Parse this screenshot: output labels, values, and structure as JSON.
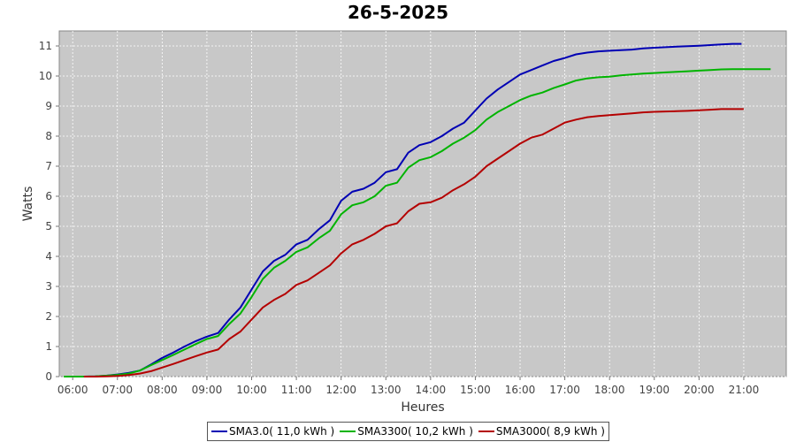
{
  "chart_data": {
    "type": "line",
    "title": "26-5-2025",
    "xlabel": "Heures",
    "ylabel": "Watts",
    "xlim": [
      5.7,
      21.95
    ],
    "ylim": [
      0,
      11.5
    ],
    "x_ticks": [
      {
        "value": 6,
        "label": "06:00"
      },
      {
        "value": 7,
        "label": "07:00"
      },
      {
        "value": 8,
        "label": "08:00"
      },
      {
        "value": 9,
        "label": "09:00"
      },
      {
        "value": 10,
        "label": "10:00"
      },
      {
        "value": 11,
        "label": "11:00"
      },
      {
        "value": 12,
        "label": "12:00"
      },
      {
        "value": 13,
        "label": "13:00"
      },
      {
        "value": 14,
        "label": "14:00"
      },
      {
        "value": 15,
        "label": "15:00"
      },
      {
        "value": 16,
        "label": "16:00"
      },
      {
        "value": 17,
        "label": "17:00"
      },
      {
        "value": 18,
        "label": "18:00"
      },
      {
        "value": 19,
        "label": "19:00"
      },
      {
        "value": 20,
        "label": "20:00"
      },
      {
        "value": 21,
        "label": "21:00"
      }
    ],
    "y_ticks": [
      0,
      1,
      2,
      3,
      4,
      5,
      6,
      7,
      8,
      9,
      10,
      11
    ],
    "grid": true,
    "legend_position": "bottom",
    "plot_background": "#c8c8c8",
    "series": [
      {
        "name": "SMA3.0( 11,0 kWh )",
        "color": "#0000b4",
        "points": [
          [
            6.25,
            0.0
          ],
          [
            6.5,
            0.01
          ],
          [
            6.75,
            0.03
          ],
          [
            7.0,
            0.07
          ],
          [
            7.25,
            0.12
          ],
          [
            7.5,
            0.2
          ],
          [
            7.75,
            0.4
          ],
          [
            8.0,
            0.62
          ],
          [
            8.25,
            0.8
          ],
          [
            8.5,
            1.0
          ],
          [
            8.75,
            1.18
          ],
          [
            9.0,
            1.33
          ],
          [
            9.25,
            1.45
          ],
          [
            9.5,
            1.9
          ],
          [
            9.75,
            2.3
          ],
          [
            10.0,
            2.9
          ],
          [
            10.25,
            3.5
          ],
          [
            10.5,
            3.85
          ],
          [
            10.75,
            4.05
          ],
          [
            11.0,
            4.4
          ],
          [
            11.25,
            4.55
          ],
          [
            11.5,
            4.9
          ],
          [
            11.75,
            5.2
          ],
          [
            12.0,
            5.85
          ],
          [
            12.25,
            6.15
          ],
          [
            12.5,
            6.25
          ],
          [
            12.75,
            6.45
          ],
          [
            13.0,
            6.8
          ],
          [
            13.25,
            6.9
          ],
          [
            13.5,
            7.45
          ],
          [
            13.75,
            7.7
          ],
          [
            14.0,
            7.8
          ],
          [
            14.25,
            8.0
          ],
          [
            14.5,
            8.25
          ],
          [
            14.75,
            8.45
          ],
          [
            15.0,
            8.85
          ],
          [
            15.25,
            9.25
          ],
          [
            15.5,
            9.55
          ],
          [
            15.75,
            9.8
          ],
          [
            16.0,
            10.05
          ],
          [
            16.25,
            10.2
          ],
          [
            16.5,
            10.35
          ],
          [
            16.75,
            10.5
          ],
          [
            17.0,
            10.6
          ],
          [
            17.25,
            10.72
          ],
          [
            17.5,
            10.78
          ],
          [
            17.75,
            10.82
          ],
          [
            18.0,
            10.84
          ],
          [
            18.25,
            10.86
          ],
          [
            18.5,
            10.88
          ],
          [
            18.75,
            10.92
          ],
          [
            19.0,
            10.94
          ],
          [
            19.25,
            10.96
          ],
          [
            19.5,
            10.98
          ],
          [
            19.75,
            10.99
          ],
          [
            20.0,
            11.01
          ],
          [
            20.25,
            11.03
          ],
          [
            20.5,
            11.05
          ],
          [
            20.75,
            11.07
          ],
          [
            20.95,
            11.07
          ]
        ]
      },
      {
        "name": "SMA3300( 10,2 kWh )",
        "color": "#00b400",
        "points": [
          [
            5.8,
            0.0
          ],
          [
            6.25,
            0.0
          ],
          [
            6.5,
            0.01
          ],
          [
            6.75,
            0.03
          ],
          [
            7.0,
            0.06
          ],
          [
            7.25,
            0.1
          ],
          [
            7.5,
            0.2
          ],
          [
            7.75,
            0.38
          ],
          [
            8.0,
            0.55
          ],
          [
            8.25,
            0.72
          ],
          [
            8.5,
            0.9
          ],
          [
            8.75,
            1.08
          ],
          [
            9.0,
            1.25
          ],
          [
            9.25,
            1.35
          ],
          [
            9.5,
            1.75
          ],
          [
            9.75,
            2.1
          ],
          [
            10.0,
            2.65
          ],
          [
            10.25,
            3.25
          ],
          [
            10.5,
            3.62
          ],
          [
            10.75,
            3.85
          ],
          [
            11.0,
            4.15
          ],
          [
            11.25,
            4.3
          ],
          [
            11.5,
            4.6
          ],
          [
            11.75,
            4.85
          ],
          [
            12.0,
            5.4
          ],
          [
            12.25,
            5.7
          ],
          [
            12.5,
            5.8
          ],
          [
            12.75,
            6.0
          ],
          [
            13.0,
            6.35
          ],
          [
            13.25,
            6.45
          ],
          [
            13.5,
            6.95
          ],
          [
            13.75,
            7.2
          ],
          [
            14.0,
            7.3
          ],
          [
            14.25,
            7.5
          ],
          [
            14.5,
            7.75
          ],
          [
            14.75,
            7.95
          ],
          [
            15.0,
            8.2
          ],
          [
            15.25,
            8.55
          ],
          [
            15.5,
            8.8
          ],
          [
            15.75,
            9.0
          ],
          [
            16.0,
            9.2
          ],
          [
            16.25,
            9.35
          ],
          [
            16.5,
            9.45
          ],
          [
            16.75,
            9.6
          ],
          [
            17.0,
            9.72
          ],
          [
            17.25,
            9.85
          ],
          [
            17.5,
            9.92
          ],
          [
            17.75,
            9.96
          ],
          [
            18.0,
            9.98
          ],
          [
            18.25,
            10.02
          ],
          [
            18.5,
            10.05
          ],
          [
            18.75,
            10.08
          ],
          [
            19.0,
            10.1
          ],
          [
            19.25,
            10.12
          ],
          [
            19.5,
            10.14
          ],
          [
            19.75,
            10.16
          ],
          [
            20.0,
            10.18
          ],
          [
            20.25,
            10.2
          ],
          [
            20.5,
            10.22
          ],
          [
            20.75,
            10.23
          ],
          [
            21.0,
            10.23
          ],
          [
            21.25,
            10.23
          ],
          [
            21.6,
            10.23
          ]
        ]
      },
      {
        "name": "SMA3000( 8,9 kWh )",
        "color": "#b40000",
        "points": [
          [
            6.25,
            0.0
          ],
          [
            6.5,
            0.0
          ],
          [
            6.75,
            0.01
          ],
          [
            7.0,
            0.02
          ],
          [
            7.25,
            0.05
          ],
          [
            7.5,
            0.1
          ],
          [
            7.75,
            0.18
          ],
          [
            8.0,
            0.3
          ],
          [
            8.25,
            0.42
          ],
          [
            8.5,
            0.55
          ],
          [
            8.75,
            0.68
          ],
          [
            9.0,
            0.8
          ],
          [
            9.25,
            0.9
          ],
          [
            9.5,
            1.25
          ],
          [
            9.75,
            1.5
          ],
          [
            10.0,
            1.9
          ],
          [
            10.25,
            2.3
          ],
          [
            10.5,
            2.55
          ],
          [
            10.75,
            2.75
          ],
          [
            11.0,
            3.05
          ],
          [
            11.25,
            3.2
          ],
          [
            11.5,
            3.45
          ],
          [
            11.75,
            3.7
          ],
          [
            12.0,
            4.1
          ],
          [
            12.25,
            4.4
          ],
          [
            12.5,
            4.55
          ],
          [
            12.75,
            4.75
          ],
          [
            13.0,
            5.0
          ],
          [
            13.25,
            5.1
          ],
          [
            13.5,
            5.5
          ],
          [
            13.75,
            5.75
          ],
          [
            14.0,
            5.8
          ],
          [
            14.25,
            5.95
          ],
          [
            14.5,
            6.2
          ],
          [
            14.75,
            6.4
          ],
          [
            15.0,
            6.65
          ],
          [
            15.25,
            7.0
          ],
          [
            15.5,
            7.25
          ],
          [
            15.75,
            7.5
          ],
          [
            16.0,
            7.75
          ],
          [
            16.25,
            7.95
          ],
          [
            16.5,
            8.05
          ],
          [
            16.75,
            8.25
          ],
          [
            17.0,
            8.45
          ],
          [
            17.25,
            8.55
          ],
          [
            17.5,
            8.63
          ],
          [
            17.75,
            8.67
          ],
          [
            18.0,
            8.7
          ],
          [
            18.25,
            8.73
          ],
          [
            18.5,
            8.76
          ],
          [
            18.75,
            8.79
          ],
          [
            19.0,
            8.81
          ],
          [
            19.25,
            8.82
          ],
          [
            19.5,
            8.83
          ],
          [
            19.75,
            8.84
          ],
          [
            20.0,
            8.86
          ],
          [
            20.25,
            8.88
          ],
          [
            20.5,
            8.9
          ],
          [
            20.75,
            8.9
          ],
          [
            21.0,
            8.9
          ]
        ]
      }
    ]
  }
}
